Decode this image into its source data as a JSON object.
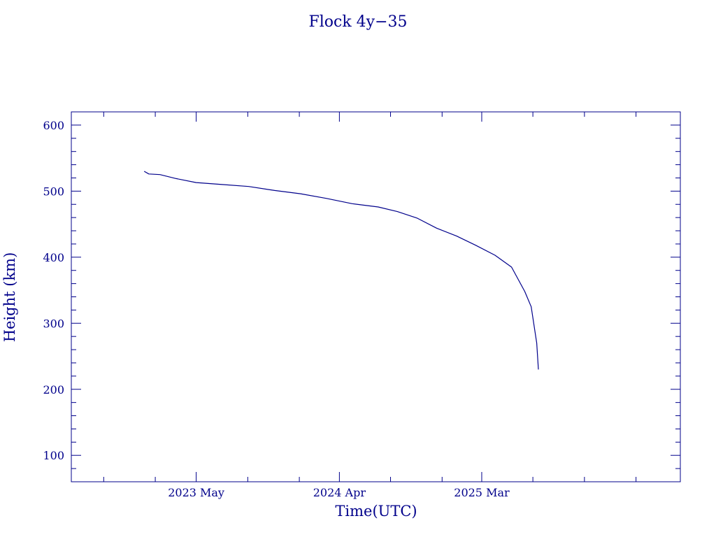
{
  "chart_data": {
    "type": "line",
    "title": "Flock 4y−35",
    "xlabel": "Time(UTC)",
    "ylabel": "Height (km)",
    "xlim": [
      "2022-07-12",
      "2026-06-10"
    ],
    "ylim": [
      60,
      620
    ],
    "colors": {
      "ink": "#00008b"
    },
    "x_ticks": [
      {
        "date": "2023-05-01",
        "label": "2023 May"
      },
      {
        "date": "2024-04-01",
        "label": "2024 Apr"
      },
      {
        "date": "2025-03-01",
        "label": "2025 Mar"
      }
    ],
    "x_minor_ticks": [
      "2022-09-26",
      "2023-01-25",
      "2023-08-30",
      "2023-12-29",
      "2024-07-30",
      "2024-11-28",
      "2025-06-29",
      "2025-10-28",
      "2026-02-26"
    ],
    "y_ticks": [
      100,
      200,
      300,
      400,
      500,
      600
    ],
    "y_minor_step": 20,
    "grid": false,
    "series": [
      {
        "x": [
          "2022-12-30",
          "2023-01-10",
          "2023-02-05",
          "2023-03-15",
          "2023-05-01",
          "2023-07-01",
          "2023-09-01",
          "2023-11-01",
          "2024-01-01",
          "2024-03-01",
          "2024-05-01",
          "2024-07-01",
          "2024-08-15",
          "2024-10-01",
          "2024-11-15",
          "2025-01-01",
          "2025-02-15",
          "2025-04-01",
          "2025-05-10",
          "2025-06-10",
          "2025-06-25",
          "2025-07-01",
          "2025-07-08",
          "2025-07-12"
        ],
        "y": [
          530,
          526,
          525,
          519,
          513,
          510,
          507,
          501,
          496,
          489,
          481,
          476,
          469,
          459,
          444,
          432,
          418,
          403,
          385,
          348,
          325,
          300,
          270,
          230
        ]
      }
    ]
  }
}
